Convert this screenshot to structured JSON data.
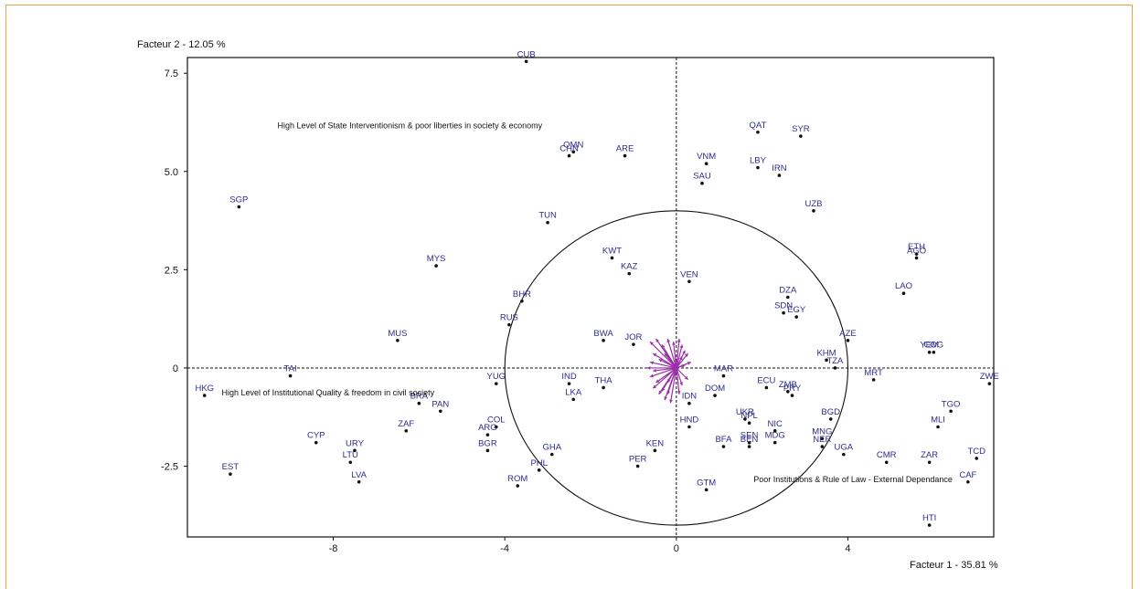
{
  "colors": {
    "frame": "#e9a24a",
    "points": "#111111",
    "labels": "#2c2c8c",
    "vectors": "#9a2fa8",
    "axes": "#111111"
  },
  "chart_data": {
    "type": "scatter",
    "xlabel": "Facteur 1  -  35.81 %",
    "ylabel": "Facteur 2  -  12.05 %",
    "xlim": [
      -11.4,
      7.4
    ],
    "ylim": [
      -4.3,
      7.9
    ],
    "x_ticks": [
      {
        "value": -8,
        "label": "-8"
      },
      {
        "value": -4,
        "label": "-4"
      },
      {
        "value": 0,
        "label": "0"
      },
      {
        "value": 4,
        "label": "4"
      }
    ],
    "y_ticks": [
      {
        "value": 7.5,
        "label": "7.5"
      },
      {
        "value": 5.0,
        "label": "5.0"
      },
      {
        "value": 2.5,
        "label": "2.5"
      },
      {
        "value": 0,
        "label": "0"
      },
      {
        "value": -2.5,
        "label": "-2.5"
      }
    ],
    "circle_radius": 4.0,
    "annotations": [
      {
        "text": "High Level of State Interventionism & poor liberties in society & economy",
        "x": -9.3,
        "y": 6.1
      },
      {
        "text": "High Level of Institutional Quality & freedom in civil society",
        "x": -10.6,
        "y": -0.7
      },
      {
        "text": "Poor Institutions & Rule of Law - External Dependance",
        "x": 1.8,
        "y": -2.9
      }
    ],
    "points": [
      {
        "label": "CUB",
        "x": -3.5,
        "y": 7.8
      },
      {
        "label": "OMN",
        "x": -2.4,
        "y": 5.5
      },
      {
        "label": "CHN",
        "x": -2.5,
        "y": 5.4
      },
      {
        "label": "ARE",
        "x": -1.2,
        "y": 5.4
      },
      {
        "label": "QAT",
        "x": 1.9,
        "y": 6.0
      },
      {
        "label": "SYR",
        "x": 2.9,
        "y": 5.9
      },
      {
        "label": "VNM",
        "x": 0.7,
        "y": 5.2
      },
      {
        "label": "LBY",
        "x": 1.9,
        "y": 5.1
      },
      {
        "label": "IRN",
        "x": 2.4,
        "y": 4.9
      },
      {
        "label": "SAU",
        "x": 0.6,
        "y": 4.7
      },
      {
        "label": "SGP",
        "x": -10.2,
        "y": 4.1
      },
      {
        "label": "TUN",
        "x": -3.0,
        "y": 3.7
      },
      {
        "label": "UZB",
        "x": 3.2,
        "y": 4.0
      },
      {
        "label": "ETH",
        "x": 5.6,
        "y": 2.9
      },
      {
        "label": "AGO",
        "x": 5.6,
        "y": 2.8
      },
      {
        "label": "KWT",
        "x": -1.5,
        "y": 2.8
      },
      {
        "label": "KAZ",
        "x": -1.1,
        "y": 2.4
      },
      {
        "label": "MYS",
        "x": -5.6,
        "y": 2.6
      },
      {
        "label": "VEN",
        "x": 0.3,
        "y": 2.2
      },
      {
        "label": "LAO",
        "x": 5.3,
        "y": 1.9
      },
      {
        "label": "BHR",
        "x": -3.6,
        "y": 1.7
      },
      {
        "label": "DZA",
        "x": 2.6,
        "y": 1.8
      },
      {
        "label": "SDN",
        "x": 2.5,
        "y": 1.4
      },
      {
        "label": "EGY",
        "x": 2.8,
        "y": 1.3
      },
      {
        "label": "RUS",
        "x": -3.9,
        "y": 1.1
      },
      {
        "label": "MUS",
        "x": -6.5,
        "y": 0.7
      },
      {
        "label": "BWA",
        "x": -1.7,
        "y": 0.7
      },
      {
        "label": "JOR",
        "x": -1.0,
        "y": 0.6
      },
      {
        "label": "AZE",
        "x": 4.0,
        "y": 0.7
      },
      {
        "label": "YEM",
        "x": 5.9,
        "y": 0.4
      },
      {
        "label": "COG",
        "x": 6.0,
        "y": 0.4
      },
      {
        "label": "KHM",
        "x": 3.5,
        "y": 0.2
      },
      {
        "label": "TZA",
        "x": 3.7,
        "y": 0.0
      },
      {
        "label": "TAI",
        "x": -9.0,
        "y": -0.2
      },
      {
        "label": "MRT",
        "x": 4.6,
        "y": -0.3
      },
      {
        "label": "ZWE",
        "x": 7.3,
        "y": -0.4
      },
      {
        "label": "HKG",
        "x": -11.0,
        "y": -0.7
      },
      {
        "label": "YUG",
        "x": -4.2,
        "y": -0.4
      },
      {
        "label": "IND",
        "x": -2.5,
        "y": -0.4
      },
      {
        "label": "THA",
        "x": -1.7,
        "y": -0.5
      },
      {
        "label": "MAR",
        "x": 1.1,
        "y": -0.2
      },
      {
        "label": "DOM",
        "x": 0.9,
        "y": -0.7
      },
      {
        "label": "ECU",
        "x": 2.1,
        "y": -0.5
      },
      {
        "label": "ZMB",
        "x": 2.6,
        "y": -0.6
      },
      {
        "label": "PRY",
        "x": 2.7,
        "y": -0.7
      },
      {
        "label": "BRA",
        "x": -6.0,
        "y": -0.9
      },
      {
        "label": "LKA",
        "x": -2.4,
        "y": -0.8
      },
      {
        "label": "IDN",
        "x": 0.3,
        "y": -0.9
      },
      {
        "label": "PAN",
        "x": -5.5,
        "y": -1.1
      },
      {
        "label": "UKR",
        "x": 1.6,
        "y": -1.3
      },
      {
        "label": "NPL",
        "x": 1.7,
        "y": -1.4
      },
      {
        "label": "TGO",
        "x": 6.4,
        "y": -1.1
      },
      {
        "label": "BGD",
        "x": 3.6,
        "y": -1.3
      },
      {
        "label": "HND",
        "x": 0.3,
        "y": -1.5
      },
      {
        "label": "NIC",
        "x": 2.3,
        "y": -1.6
      },
      {
        "label": "MLI",
        "x": 6.1,
        "y": -1.5
      },
      {
        "label": "ZAF",
        "x": -6.3,
        "y": -1.6
      },
      {
        "label": "COL",
        "x": -4.2,
        "y": -1.5
      },
      {
        "label": "ARG",
        "x": -4.4,
        "y": -1.7
      },
      {
        "label": "MDG",
        "x": 2.3,
        "y": -1.9
      },
      {
        "label": "MNG",
        "x": 3.4,
        "y": -1.8
      },
      {
        "label": "SEN",
        "x": 1.7,
        "y": -1.9
      },
      {
        "label": "CYP",
        "x": -8.4,
        "y": -1.9
      },
      {
        "label": "BGR",
        "x": -4.4,
        "y": -2.1
      },
      {
        "label": "BEN",
        "x": 1.7,
        "y": -2.0
      },
      {
        "label": "NER",
        "x": 3.4,
        "y": -2.0
      },
      {
        "label": "BFA",
        "x": 1.1,
        "y": -2.0
      },
      {
        "label": "URY",
        "x": -7.5,
        "y": -2.1
      },
      {
        "label": "KEN",
        "x": -0.5,
        "y": -2.1
      },
      {
        "label": "GHA",
        "x": -2.9,
        "y": -2.2
      },
      {
        "label": "UGA",
        "x": 3.9,
        "y": -2.2
      },
      {
        "label": "LTU",
        "x": -7.6,
        "y": -2.4
      },
      {
        "label": "CMR",
        "x": 4.9,
        "y": -2.4
      },
      {
        "label": "ZAR",
        "x": 5.9,
        "y": -2.4
      },
      {
        "label": "TCD",
        "x": 7.0,
        "y": -2.3
      },
      {
        "label": "PER",
        "x": -0.9,
        "y": -2.5
      },
      {
        "label": "PHL",
        "x": -3.2,
        "y": -2.6
      },
      {
        "label": "EST",
        "x": -10.4,
        "y": -2.7
      },
      {
        "label": "LVA",
        "x": -7.4,
        "y": -2.9
      },
      {
        "label": "ROM",
        "x": -3.7,
        "y": -3.0
      },
      {
        "label": "CAF",
        "x": 6.8,
        "y": -2.9
      },
      {
        "label": "GTM",
        "x": 0.7,
        "y": -3.1
      },
      {
        "label": "HTI",
        "x": 5.9,
        "y": -4.0
      }
    ],
    "vectors": [
      {
        "dx": -0.9,
        "dy": 0.9
      },
      {
        "dx": -0.7,
        "dy": 1.0
      },
      {
        "dx": -0.5,
        "dy": 0.8
      },
      {
        "dx": -0.3,
        "dy": 1.0
      },
      {
        "dx": -0.1,
        "dy": 0.9
      },
      {
        "dx": 0.1,
        "dy": 1.0
      },
      {
        "dx": 0.2,
        "dy": 0.8
      },
      {
        "dx": 0.3,
        "dy": 0.6
      },
      {
        "dx": 0.4,
        "dy": 0.5
      },
      {
        "dx": 0.5,
        "dy": 0.2
      },
      {
        "dx": 0.3,
        "dy": 0.1
      },
      {
        "dx": -0.8,
        "dy": 0.5
      },
      {
        "dx": -0.9,
        "dy": 0.2
      },
      {
        "dx": -0.8,
        "dy": -0.1
      },
      {
        "dx": -0.9,
        "dy": -0.3
      },
      {
        "dx": -0.7,
        "dy": -0.5
      },
      {
        "dx": -0.8,
        "dy": -0.7
      },
      {
        "dx": -0.5,
        "dy": -0.8
      },
      {
        "dx": -0.4,
        "dy": -1.1
      },
      {
        "dx": -0.3,
        "dy": -0.9
      },
      {
        "dx": -0.2,
        "dy": -1.2
      },
      {
        "dx": -0.6,
        "dy": -0.9
      },
      {
        "dx": 0.2,
        "dy": -0.6
      },
      {
        "dx": 0.4,
        "dy": -0.4
      },
      {
        "dx": -0.6,
        "dy": 0.3
      },
      {
        "dx": -0.4,
        "dy": 0.5
      },
      {
        "dx": 0.2,
        "dy": 0.4
      },
      {
        "dx": -1.0,
        "dy": 0.0
      },
      {
        "dx": -0.3,
        "dy": -0.5
      },
      {
        "dx": 0.1,
        "dy": -0.9
      }
    ]
  }
}
